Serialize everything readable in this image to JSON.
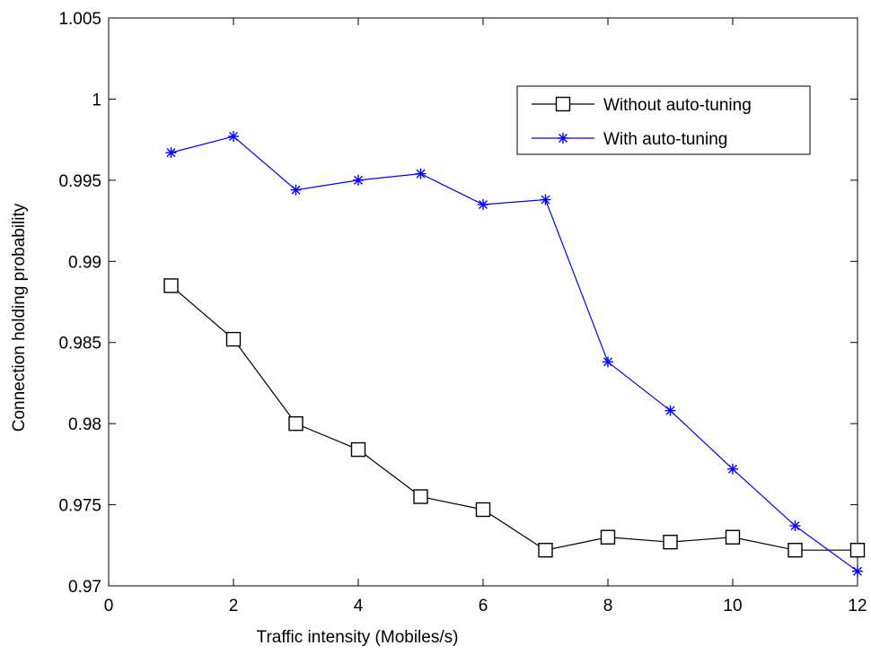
{
  "chart_data": {
    "type": "line",
    "xlabel": "Traffic intensity (Mobiles/s)",
    "ylabel": "Connection holding probability",
    "xlim": [
      0,
      12
    ],
    "ylim": [
      0.97,
      1.005
    ],
    "x_ticks": [
      0,
      2,
      4,
      6,
      8,
      10,
      12
    ],
    "x_tick_labels": [
      "0",
      "2",
      "4",
      "6",
      "8",
      "10",
      "12"
    ],
    "y_ticks": [
      0.97,
      0.975,
      0.98,
      0.985,
      0.99,
      0.995,
      1.0,
      1.005
    ],
    "y_tick_labels": [
      "0.97",
      "0.975",
      "0.98",
      "0.985",
      "0.99",
      "0.995",
      "1",
      "1.005"
    ],
    "grid": false,
    "legend_position": "top-right",
    "x": [
      1,
      2,
      3,
      4,
      5,
      6,
      7,
      8,
      9,
      10,
      11,
      12
    ],
    "series": [
      {
        "name": "Without auto-tuning",
        "color": "#000000",
        "marker": "square",
        "values": [
          0.9885,
          0.9852,
          0.98,
          0.9784,
          0.9755,
          0.9747,
          0.9722,
          0.973,
          0.9727,
          0.973,
          0.9722,
          0.9722
        ]
      },
      {
        "name": "With auto-tuning",
        "color": "#0000ff",
        "marker": "asterisk",
        "values": [
          0.9967,
          0.9977,
          0.9944,
          0.995,
          0.9954,
          0.9935,
          0.9938,
          0.9838,
          0.9808,
          0.9772,
          0.9737,
          0.9709
        ]
      }
    ]
  }
}
